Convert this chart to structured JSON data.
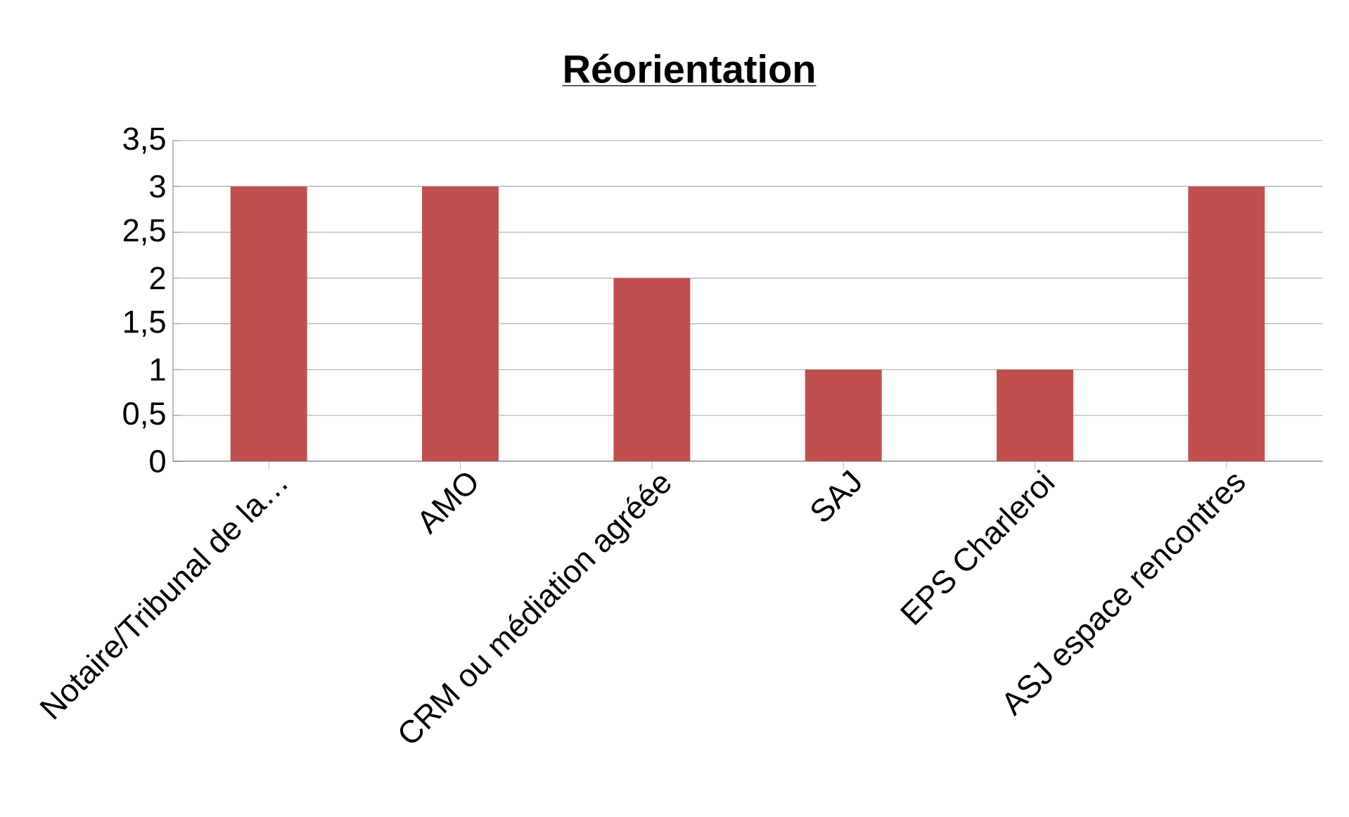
{
  "chart_data": {
    "type": "bar",
    "title": "Réorientation",
    "categories": [
      "Notaire/Tribunal de la…",
      "AMO",
      "CRM ou médiation agréée",
      "SAJ",
      "EPS Charleroi",
      "ASJ espace rencontres"
    ],
    "values": [
      3,
      3,
      2,
      1,
      1,
      3
    ],
    "color": "#c0504d",
    "ylim": [
      0,
      3.5
    ],
    "yticks": [
      0,
      {
        "value": 0.5,
        "label": "0,5"
      },
      1,
      {
        "value": 1.5,
        "label": "1,5"
      },
      2,
      {
        "value": 2.5,
        "label": "2,5"
      },
      3,
      {
        "value": 3.5,
        "label": "3,5"
      }
    ],
    "grid": "y"
  }
}
